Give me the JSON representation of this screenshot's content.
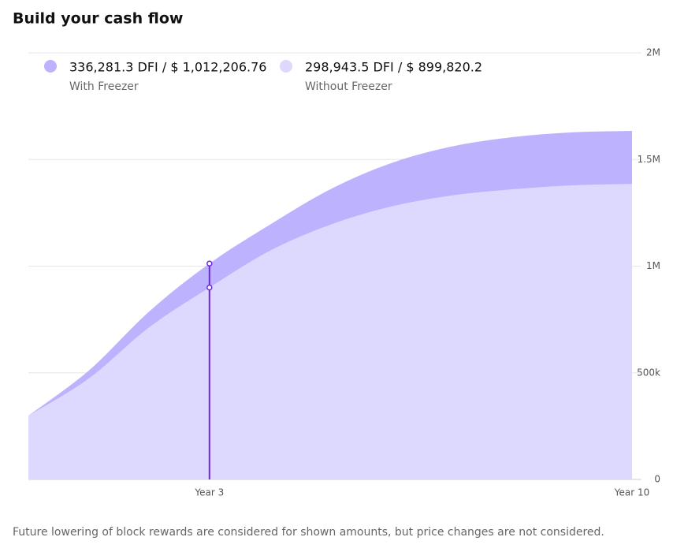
{
  "chart_data": {
    "type": "area",
    "title": "Build your cash flow",
    "note": "Future lowering of block rewards are considered for shown amounts, but price changes are not considered.",
    "x": [
      0,
      1,
      2,
      3,
      4,
      5,
      6,
      7,
      8,
      9,
      10
    ],
    "xlim": [
      0,
      10
    ],
    "xticks": [
      {
        "value": 3,
        "label": "Year 3"
      },
      {
        "value": 10,
        "label": "Year 10"
      }
    ],
    "ylim": [
      0,
      2000000
    ],
    "yticks": [
      0,
      {
        "value": 500000,
        "label": "500k"
      },
      {
        "value": 1000000,
        "label": "1M"
      },
      {
        "value": 1500000,
        "label": "1.5M"
      },
      {
        "value": 2000000,
        "label": "2M"
      }
    ],
    "grid": true,
    "highlight_x": 3,
    "highlight_color": "#6d28d9",
    "series": [
      {
        "name": "With Freezer",
        "legend_value": "336,281.3 DFI / $ 1,012,206.76",
        "color": "#bdb2fd",
        "values": [
          299000,
          510000,
          787000,
          1012206.76,
          1194000,
          1360000,
          1482000,
          1560000,
          1604000,
          1627000,
          1634000
        ]
      },
      {
        "name": "Without Freezer",
        "legend_value": "298,943.5 DFI / $ 899,820.2",
        "color": "#ddd8fe",
        "values": [
          299000,
          473000,
          713000,
          899820.2,
          1072000,
          1194000,
          1279000,
          1331000,
          1360000,
          1379000,
          1386000
        ]
      }
    ]
  }
}
